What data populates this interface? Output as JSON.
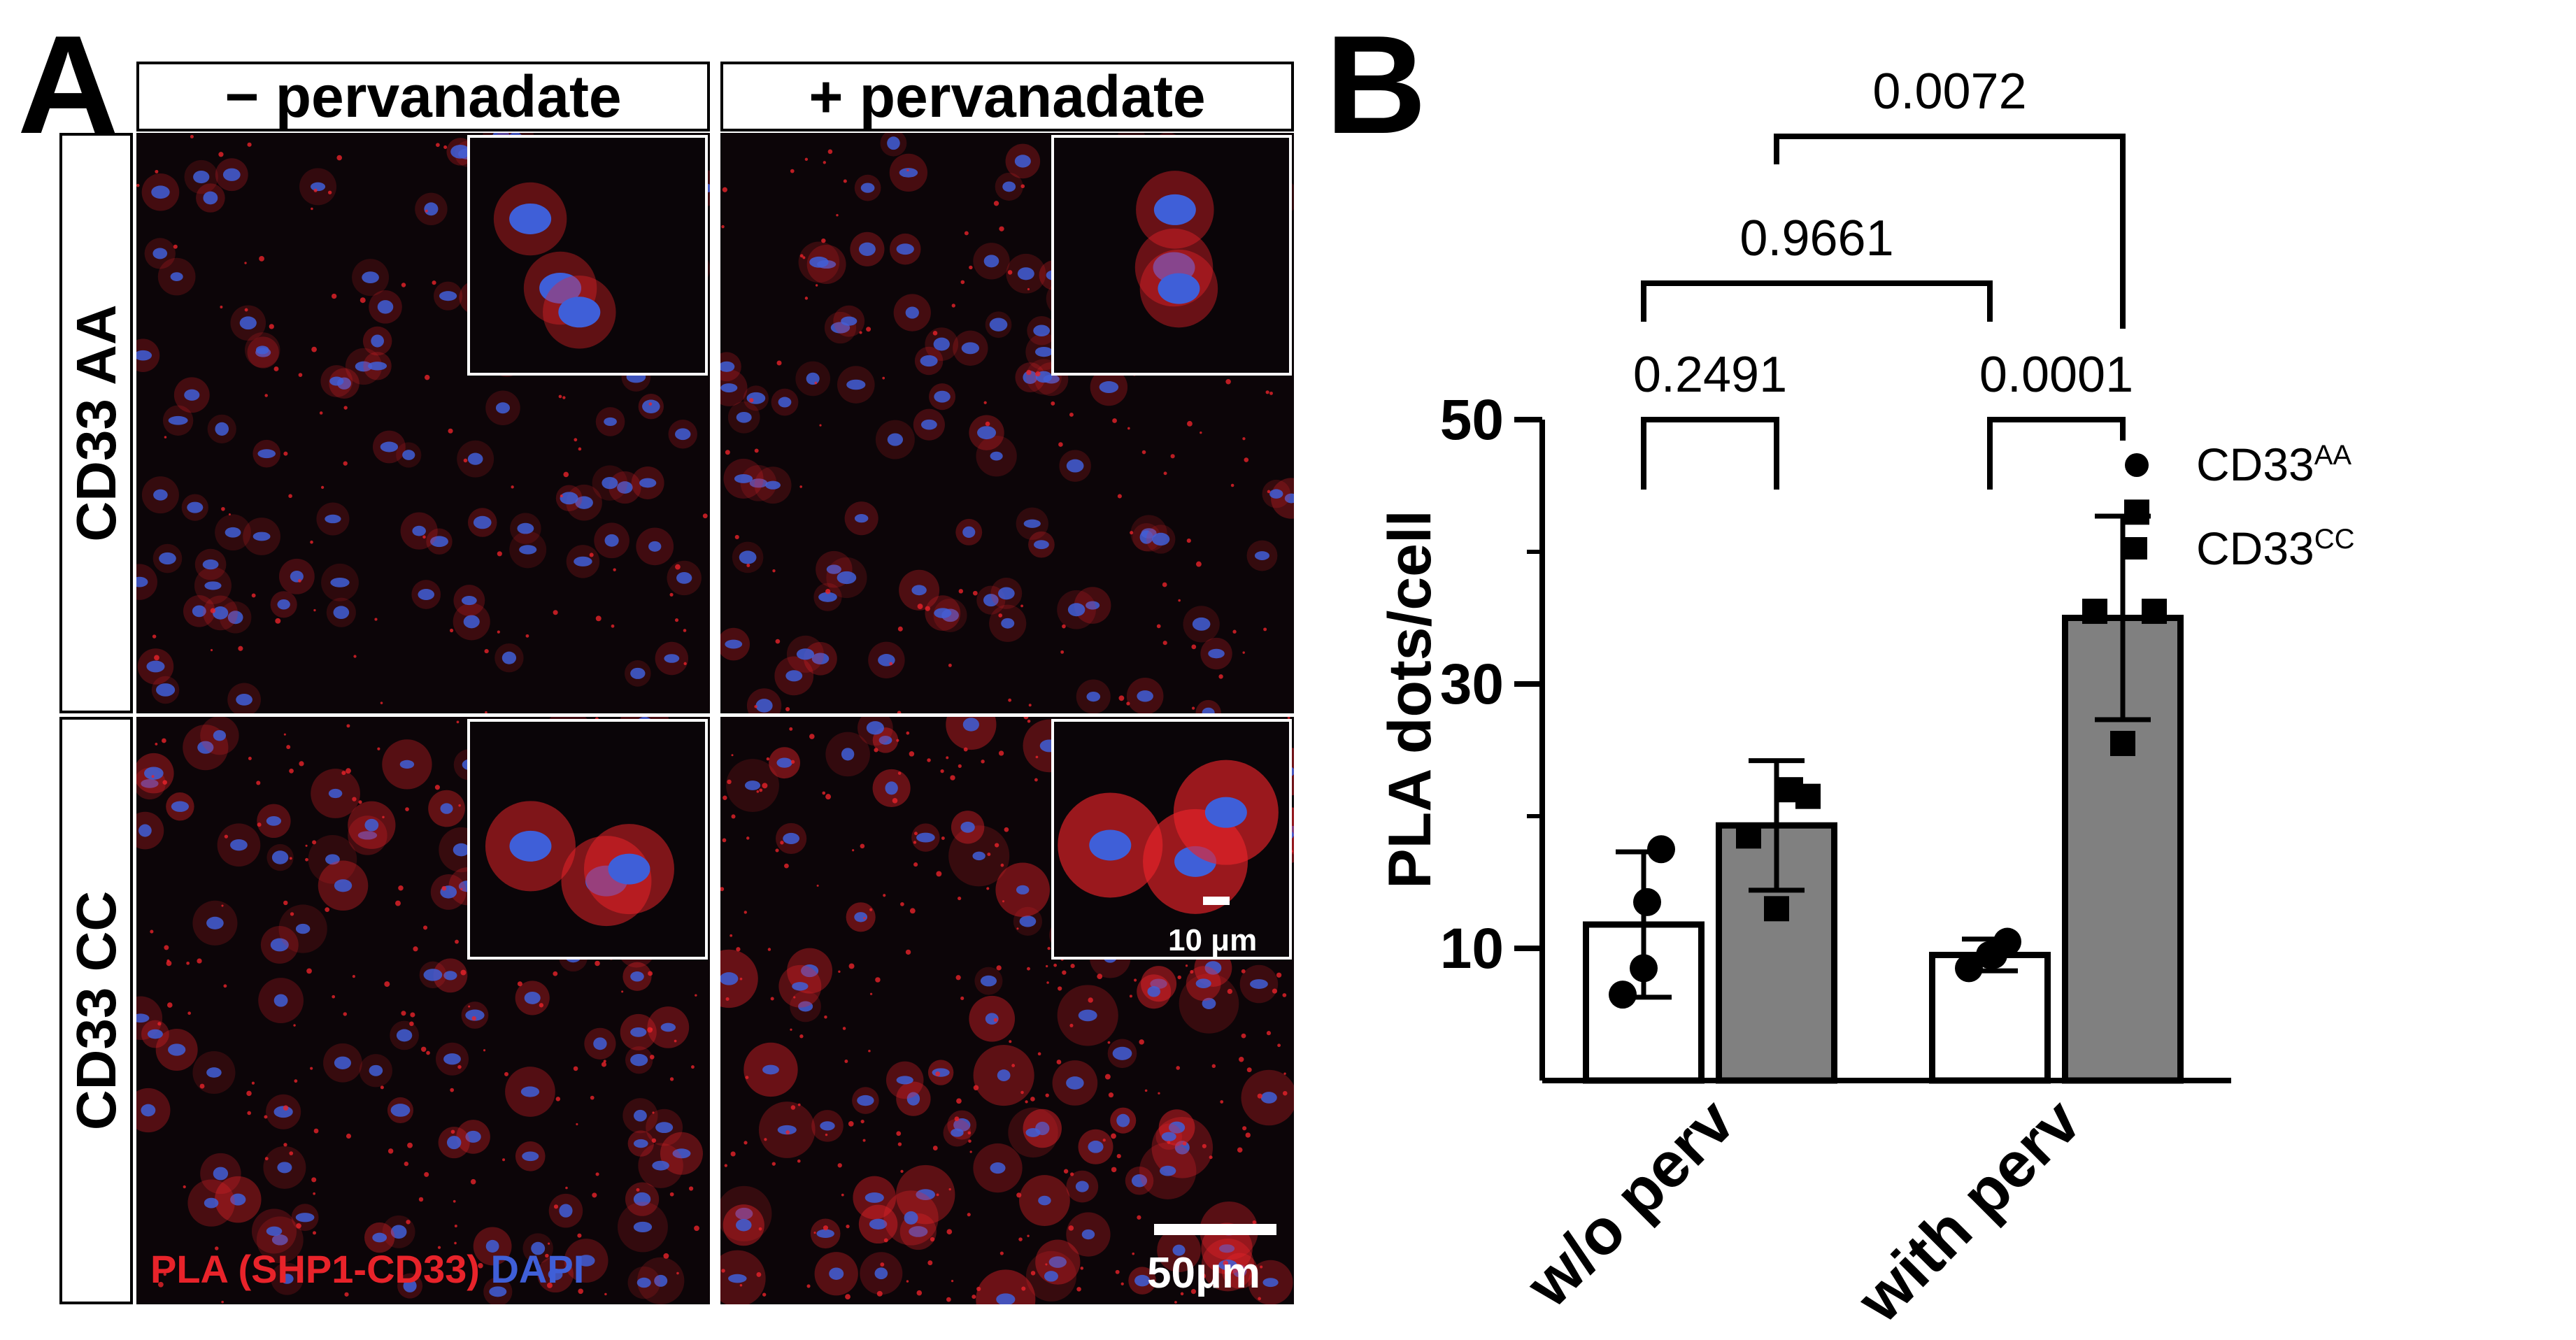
{
  "panel_a": {
    "letter": "A",
    "columns": [
      "− pervanadate",
      "+ pervanadate"
    ],
    "rows": [
      "CD33 AA",
      "CD33 CC"
    ],
    "stain_label": {
      "pla": "PLA (SHP1-CD33)",
      "dapi": "DAPI"
    },
    "scale_bar_main": "50μm",
    "scale_bar_inset": "10 μm",
    "colors": {
      "pla": "#e8232a",
      "dapi": "#3f5fd8",
      "background": "#0a0508"
    }
  },
  "panel_b": {
    "letter": "B",
    "legend": [
      {
        "marker": "circle",
        "base": "CD33",
        "sup": "AA"
      },
      {
        "marker": "square",
        "base": "CD33",
        "sup": "CC"
      }
    ]
  },
  "chart_data": {
    "type": "bar",
    "categories": [
      "w/o perv",
      "with perv"
    ],
    "ylabel": "PLA dots/cell",
    "ylim": [
      0,
      50
    ],
    "yticks": [
      10,
      30,
      50
    ],
    "series": [
      {
        "name": "CD33AA",
        "color": "#ffffff",
        "marker": "circle",
        "values": [
          11.8,
          9.5
        ],
        "sd": [
          5.5,
          1.2
        ],
        "points": [
          [
            6.5,
            8.5,
            13.5,
            17.5
          ],
          [
            8.5,
            9.5,
            9.5,
            10.5
          ]
        ]
      },
      {
        "name": "CD33CC",
        "color": "#808080",
        "marker": "square",
        "values": [
          19.3,
          35.0
        ],
        "sd": [
          4.9,
          7.7
        ],
        "points": [
          [
            13.0,
            18.5,
            21.5,
            22.0
          ],
          [
            25.5,
            35.5,
            35.5,
            43.0
          ]
        ]
      }
    ],
    "comparisons": [
      {
        "label": "0.2491",
        "between": [
          "w/o perv CD33AA",
          "w/o perv CD33CC"
        ]
      },
      {
        "label": "0.0001",
        "between": [
          "with perv CD33AA",
          "with perv CD33CC"
        ]
      },
      {
        "label": "0.9661",
        "between": [
          "w/o perv CD33AA",
          "with perv CD33AA"
        ]
      },
      {
        "label": "0.0072",
        "between": [
          "w/o perv CD33CC",
          "with perv CD33CC"
        ]
      }
    ]
  }
}
